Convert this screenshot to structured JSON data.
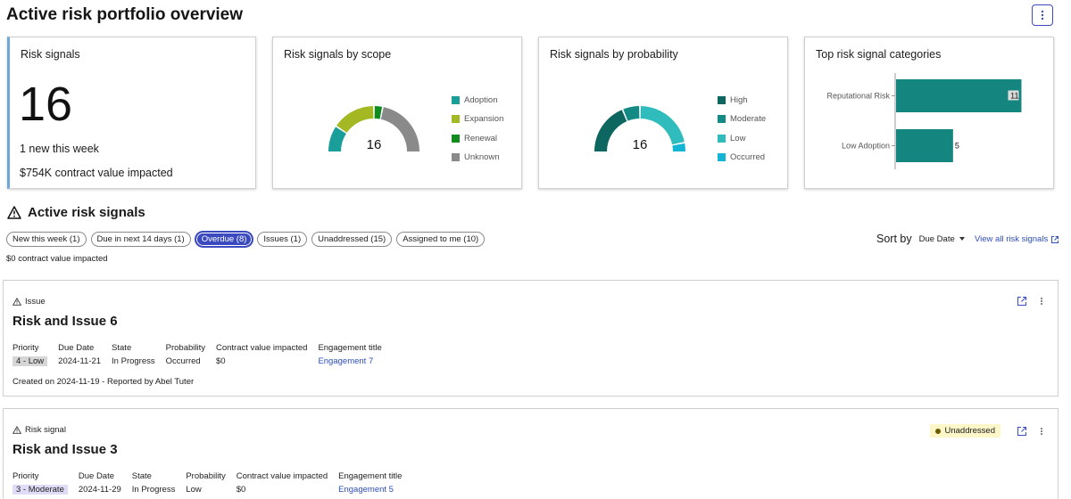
{
  "header": {
    "title": "Active risk portfolio overview",
    "more_icon": "vertical-dots-icon"
  },
  "cards": {
    "signals": {
      "title": "Risk signals",
      "count": "16",
      "line1": "1 new this week",
      "line2": "$754K contract value impacted",
      "accent": "#6fa7d9"
    },
    "scope": {
      "title": "Risk signals by scope",
      "total": "16",
      "legend": [
        {
          "label": "Adoption",
          "color": "#1a9e9a"
        },
        {
          "label": "Expansion",
          "color": "#a3b823"
        },
        {
          "label": "Renewal",
          "color": "#108c1f"
        },
        {
          "label": "Unknown",
          "color": "#8a8a8a"
        }
      ]
    },
    "probability": {
      "title": "Risk signals by probability",
      "total": "16",
      "legend": [
        {
          "label": "High",
          "color": "#0e6660"
        },
        {
          "label": "Moderate",
          "color": "#138a84"
        },
        {
          "label": "Low",
          "color": "#30bcbc"
        },
        {
          "label": "Occurred",
          "color": "#14b4d4"
        }
      ]
    },
    "categories": {
      "title": "Top risk signal categories"
    }
  },
  "chart_data": [
    {
      "type": "donut-gauge",
      "title": "Risk signals by scope",
      "center_label": "16",
      "series": [
        {
          "name": "Adoption",
          "value": 3,
          "color": "#1a9e9a"
        },
        {
          "name": "Expansion",
          "value": 5,
          "color": "#a3b823"
        },
        {
          "name": "Renewal",
          "value": 1,
          "color": "#108c1f"
        },
        {
          "name": "Unknown",
          "value": 7,
          "color": "#8a8a8a"
        }
      ]
    },
    {
      "type": "donut-gauge",
      "title": "Risk signals by probability",
      "center_label": "16",
      "series": [
        {
          "name": "High",
          "value": 6,
          "color": "#0e6660"
        },
        {
          "name": "Moderate",
          "value": 2,
          "color": "#138a84"
        },
        {
          "name": "Low",
          "value": 7,
          "color": "#30bcbc"
        },
        {
          "name": "Occurred",
          "value": 1,
          "color": "#14b4d4"
        }
      ]
    },
    {
      "type": "bar",
      "orientation": "horizontal",
      "title": "Top risk signal categories",
      "categories": [
        "Reputational Risk",
        "Low Adoption"
      ],
      "values": [
        11,
        5
      ],
      "xlim": [
        0,
        13
      ],
      "color": "#14857f"
    }
  ],
  "section": {
    "title": "Active risk signals",
    "icon": "warning-triangle-icon",
    "chips": [
      {
        "label": "New this week (1)",
        "active": false
      },
      {
        "label": "Due in next 14 days (1)",
        "active": false
      },
      {
        "label": "Overdue (8)",
        "active": true
      },
      {
        "label": "Issues (1)",
        "active": false
      },
      {
        "label": "Unaddressed (15)",
        "active": false
      },
      {
        "label": "Assigned to me (10)",
        "active": false
      }
    ],
    "sort_label": "Sort by",
    "sort_value": "Due Date",
    "view_all": "View all risk signals",
    "cv_summary": "$0 contract value impacted"
  },
  "items": [
    {
      "type": "Issue",
      "title": "Risk and Issue 6",
      "status": "",
      "fields": {
        "priority_label": "Priority",
        "priority": "4 - Low",
        "due_label": "Due Date",
        "due": "2024-11-21",
        "state_label": "State",
        "state": "In Progress",
        "prob_label": "Probability",
        "prob": "Occurred",
        "cv_label": "Contract value impacted",
        "cv": "$0",
        "eng_label": "Engagement title",
        "eng": "Engagement 7"
      },
      "created": "Created on 2024-11-19 - Reported by Abel Tuter"
    },
    {
      "type": "Risk signal",
      "title": "Risk and Issue 3",
      "status": "Unaddressed",
      "fields": {
        "priority_label": "Priority",
        "priority": "3 - Moderate",
        "due_label": "Due Date",
        "due": "2024-11-29",
        "state_label": "State",
        "state": "In Progress",
        "prob_label": "Probability",
        "prob": "Low",
        "cv_label": "Contract value impacted",
        "cv": "$0",
        "eng_label": "Engagement title",
        "eng": "Engagement 5"
      }
    }
  ]
}
